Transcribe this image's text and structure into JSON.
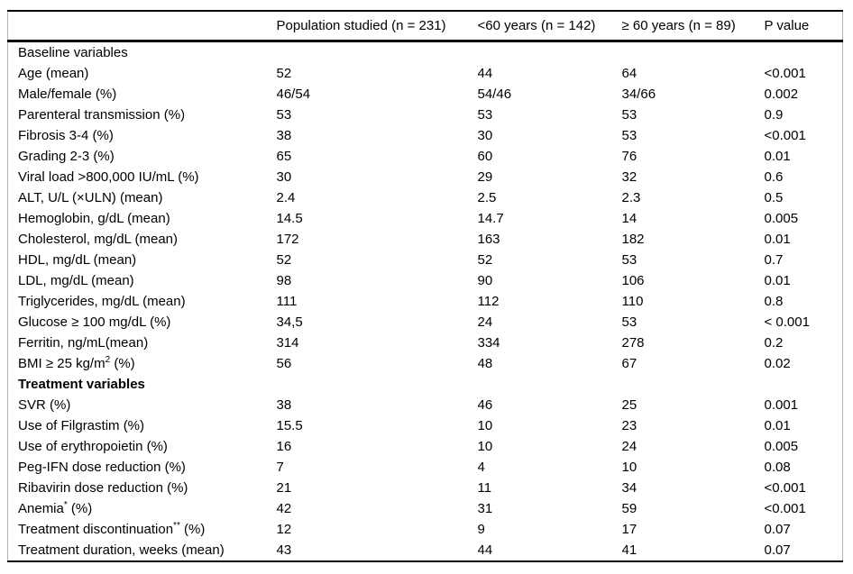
{
  "table": {
    "columns": [
      "",
      "Population studied (n = 231)",
      "<60 years (n = 142)",
      "≥ 60 years (n = 89)",
      "P value"
    ],
    "rows": [
      {
        "label": "Baseline variables",
        "section": true,
        "bold": false,
        "values": [
          "",
          "",
          "",
          ""
        ]
      },
      {
        "label": "Age (mean)",
        "values": [
          "52",
          "44",
          "64",
          "<0.001"
        ]
      },
      {
        "label": "Male/female (%)",
        "values": [
          "46/54",
          "54/46",
          "34/66",
          "0.002"
        ]
      },
      {
        "label": "Parenteral transmission (%)",
        "values": [
          "53",
          "53",
          "53",
          "0.9"
        ]
      },
      {
        "label": "Fibrosis 3-4 (%)",
        "values": [
          "38",
          "30",
          "53",
          "<0.001"
        ]
      },
      {
        "label": "Grading 2-3 (%)",
        "values": [
          "65",
          "60",
          "76",
          "0.01"
        ]
      },
      {
        "label": "Viral load >800,000 IU/mL (%)",
        "values": [
          "30",
          "29",
          "32",
          "0.6"
        ]
      },
      {
        "label": "ALT, U/L (×ULN) (mean)",
        "values": [
          "2.4",
          "2.5",
          "2.3",
          "0.5"
        ]
      },
      {
        "label": "Hemoglobin, g/dL (mean)",
        "values": [
          "14.5",
          "14.7",
          "14",
          "0.005"
        ]
      },
      {
        "label": "Cholesterol, mg/dL (mean)",
        "values": [
          "172",
          "163",
          "182",
          "0.01"
        ]
      },
      {
        "label": "HDL, mg/dL (mean)",
        "values": [
          "52",
          "52",
          "53",
          "0.7"
        ]
      },
      {
        "label": "LDL, mg/dL (mean)",
        "values": [
          "98",
          "90",
          "106",
          "0.01"
        ]
      },
      {
        "label": "Triglycerides, mg/dL (mean)",
        "values": [
          "111",
          "112",
          "110",
          "0.8"
        ]
      },
      {
        "label": "Glucose ≥ 100 mg/dL (%)",
        "values": [
          "34,5",
          "24",
          "53",
          "< 0.001"
        ]
      },
      {
        "label": "Ferritin, ng/mL(mean)",
        "values": [
          "314",
          "334",
          "278",
          "0.2"
        ]
      },
      {
        "label": "BMI ≥ 25 kg/m",
        "sup": "2",
        "suffix": " (%)",
        "values": [
          "56",
          "48",
          "67",
          "0.02"
        ]
      },
      {
        "label": "Treatment variables",
        "section": true,
        "bold": true,
        "values": [
          "",
          "",
          "",
          ""
        ]
      },
      {
        "label": "SVR (%)",
        "values": [
          "38",
          "46",
          "25",
          "0.001"
        ]
      },
      {
        "label": "Use of Filgrastim (%)",
        "values": [
          "15.5",
          "10",
          "23",
          "0.01"
        ]
      },
      {
        "label": "Use of erythropoietin (%)",
        "values": [
          "16",
          "10",
          "24",
          "0.005"
        ]
      },
      {
        "label": "Peg-IFN dose reduction (%)",
        "values": [
          "7",
          "4",
          "10",
          "0.08"
        ]
      },
      {
        "label": "Ribavirin dose reduction (%)",
        "values": [
          "21",
          "11",
          "34",
          "<0.001"
        ]
      },
      {
        "label": "Anemia",
        "sup": "*",
        "suffix": " (%)",
        "values": [
          "42",
          "31",
          "59",
          "<0.001"
        ]
      },
      {
        "label": "Treatment discontinuation",
        "sup": "**",
        "suffix": " (%)",
        "values": [
          "12",
          "9",
          "17",
          "0.07"
        ]
      },
      {
        "label": "Treatment duration, weeks (mean)",
        "values": [
          "43",
          "44",
          "41",
          "0.07"
        ]
      }
    ]
  }
}
